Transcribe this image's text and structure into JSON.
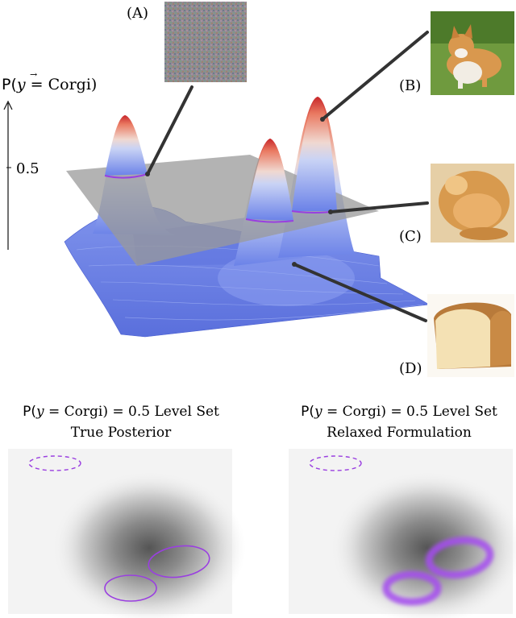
{
  "axis": {
    "ylabel_prefix": "P(",
    "ylabel_vec": "y",
    "ylabel_rest": " = Corgi)",
    "tick_label": "0.5"
  },
  "insets": {
    "a_label": "(A)",
    "b_label": "(B)",
    "c_label": "(C)",
    "d_label": "(D)"
  },
  "panels": {
    "left": {
      "title_prefix": "P(",
      "title_vec": "y",
      "title_rest": " = Corgi) = 0.5 Level Set",
      "subtitle": "True Posterior"
    },
    "right": {
      "title_prefix": "P(",
      "title_vec": "y",
      "title_rest": " = Corgi) = 0.5 Level Set",
      "subtitle": "Relaxed Formulation"
    }
  },
  "colors": {
    "surface_low": "#6a7fe6",
    "surface_high": "#d9342b",
    "plane": "#9a9a9a",
    "level_set": "#9a3fe0",
    "leader": "#333333"
  }
}
